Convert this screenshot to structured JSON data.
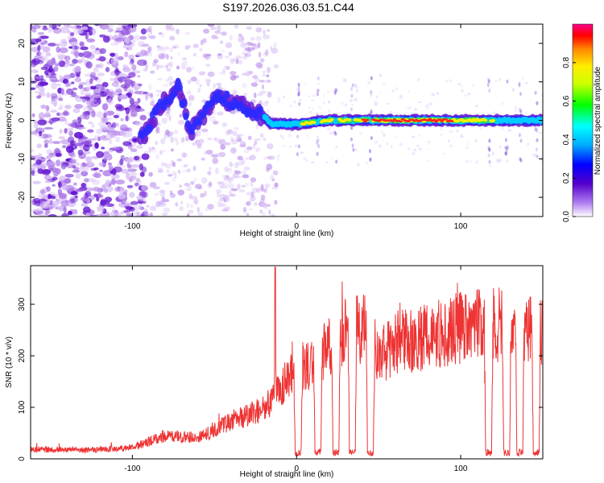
{
  "figure": {
    "title": "S197.2026.036.03.51.C44"
  },
  "chart_data": [
    {
      "type": "heatmap",
      "name": "spectrogram",
      "xlabel": "Height of straight line (km)",
      "ylabel": "Frequency (Hz)",
      "xlim": [
        -162,
        150
      ],
      "ylim": [
        -25,
        25
      ],
      "xticks": [
        -100,
        0,
        100
      ],
      "yticks": [
        -20,
        -10,
        0,
        10,
        20
      ],
      "colorbar": {
        "label": "Normalized spectral amplitude",
        "range": [
          0,
          1
        ],
        "ticks": [
          0.0,
          0.2,
          0.4,
          0.6,
          0.8
        ],
        "tick_labels": [
          "0.0",
          "0.2",
          "0.4",
          "0.6",
          "0.8"
        ]
      },
      "ridge": [
        {
          "x": -95,
          "freq": -5
        },
        {
          "x": -85,
          "freq": 2
        },
        {
          "x": -80,
          "freq": 5
        },
        {
          "x": -72,
          "freq": 9
        },
        {
          "x": -65,
          "freq": -3
        },
        {
          "x": -55,
          "freq": 2
        },
        {
          "x": -50,
          "freq": 6
        },
        {
          "x": -40,
          "freq": 5
        },
        {
          "x": -30,
          "freq": 3
        },
        {
          "x": -20,
          "freq": 1
        },
        {
          "x": -15,
          "freq": -1
        },
        {
          "x": 0,
          "freq": -1
        },
        {
          "x": 20,
          "freq": 0
        },
        {
          "x": 60,
          "freq": 0
        },
        {
          "x": 100,
          "freq": 0
        },
        {
          "x": 150,
          "freq": 0
        }
      ],
      "note": "Noise-dominated (scattered speckle) for heights below about -90 km; coherent ridge near 0 Hz above about -20 km with peak amplitude (~0.95) between 40 and 90 km"
    },
    {
      "type": "line",
      "name": "snr",
      "xlabel": "Height of straight line (km)",
      "ylabel": "SNR (10 * v/v)",
      "xlim": [
        -162,
        150
      ],
      "ylim": [
        0,
        375
      ],
      "xticks": [
        -100,
        0,
        100
      ],
      "yticks": [
        0,
        100,
        200,
        300
      ],
      "color": "#ee3333",
      "envelope": [
        {
          "x": -160,
          "value": 18
        },
        {
          "x": -120,
          "value": 18
        },
        {
          "x": -100,
          "value": 22
        },
        {
          "x": -80,
          "value": 45
        },
        {
          "x": -60,
          "value": 40
        },
        {
          "x": -40,
          "value": 75
        },
        {
          "x": -20,
          "value": 95
        },
        {
          "x": -10,
          "value": 140
        },
        {
          "x": 0,
          "value": 170
        },
        {
          "x": 10,
          "value": 190
        },
        {
          "x": 20,
          "value": 215
        },
        {
          "x": 30,
          "value": 250
        },
        {
          "x": 45,
          "value": 255
        },
        {
          "x": 50,
          "value": 195
        },
        {
          "x": 60,
          "value": 225
        },
        {
          "x": 80,
          "value": 235
        },
        {
          "x": 100,
          "value": 255
        },
        {
          "x": 120,
          "value": 262
        },
        {
          "x": 150,
          "value": 245
        }
      ],
      "spikes": [
        {
          "x": -13,
          "value": 372
        }
      ],
      "dropouts": [
        1,
        13,
        24,
        34,
        45,
        117,
        128,
        136,
        146
      ]
    }
  ]
}
